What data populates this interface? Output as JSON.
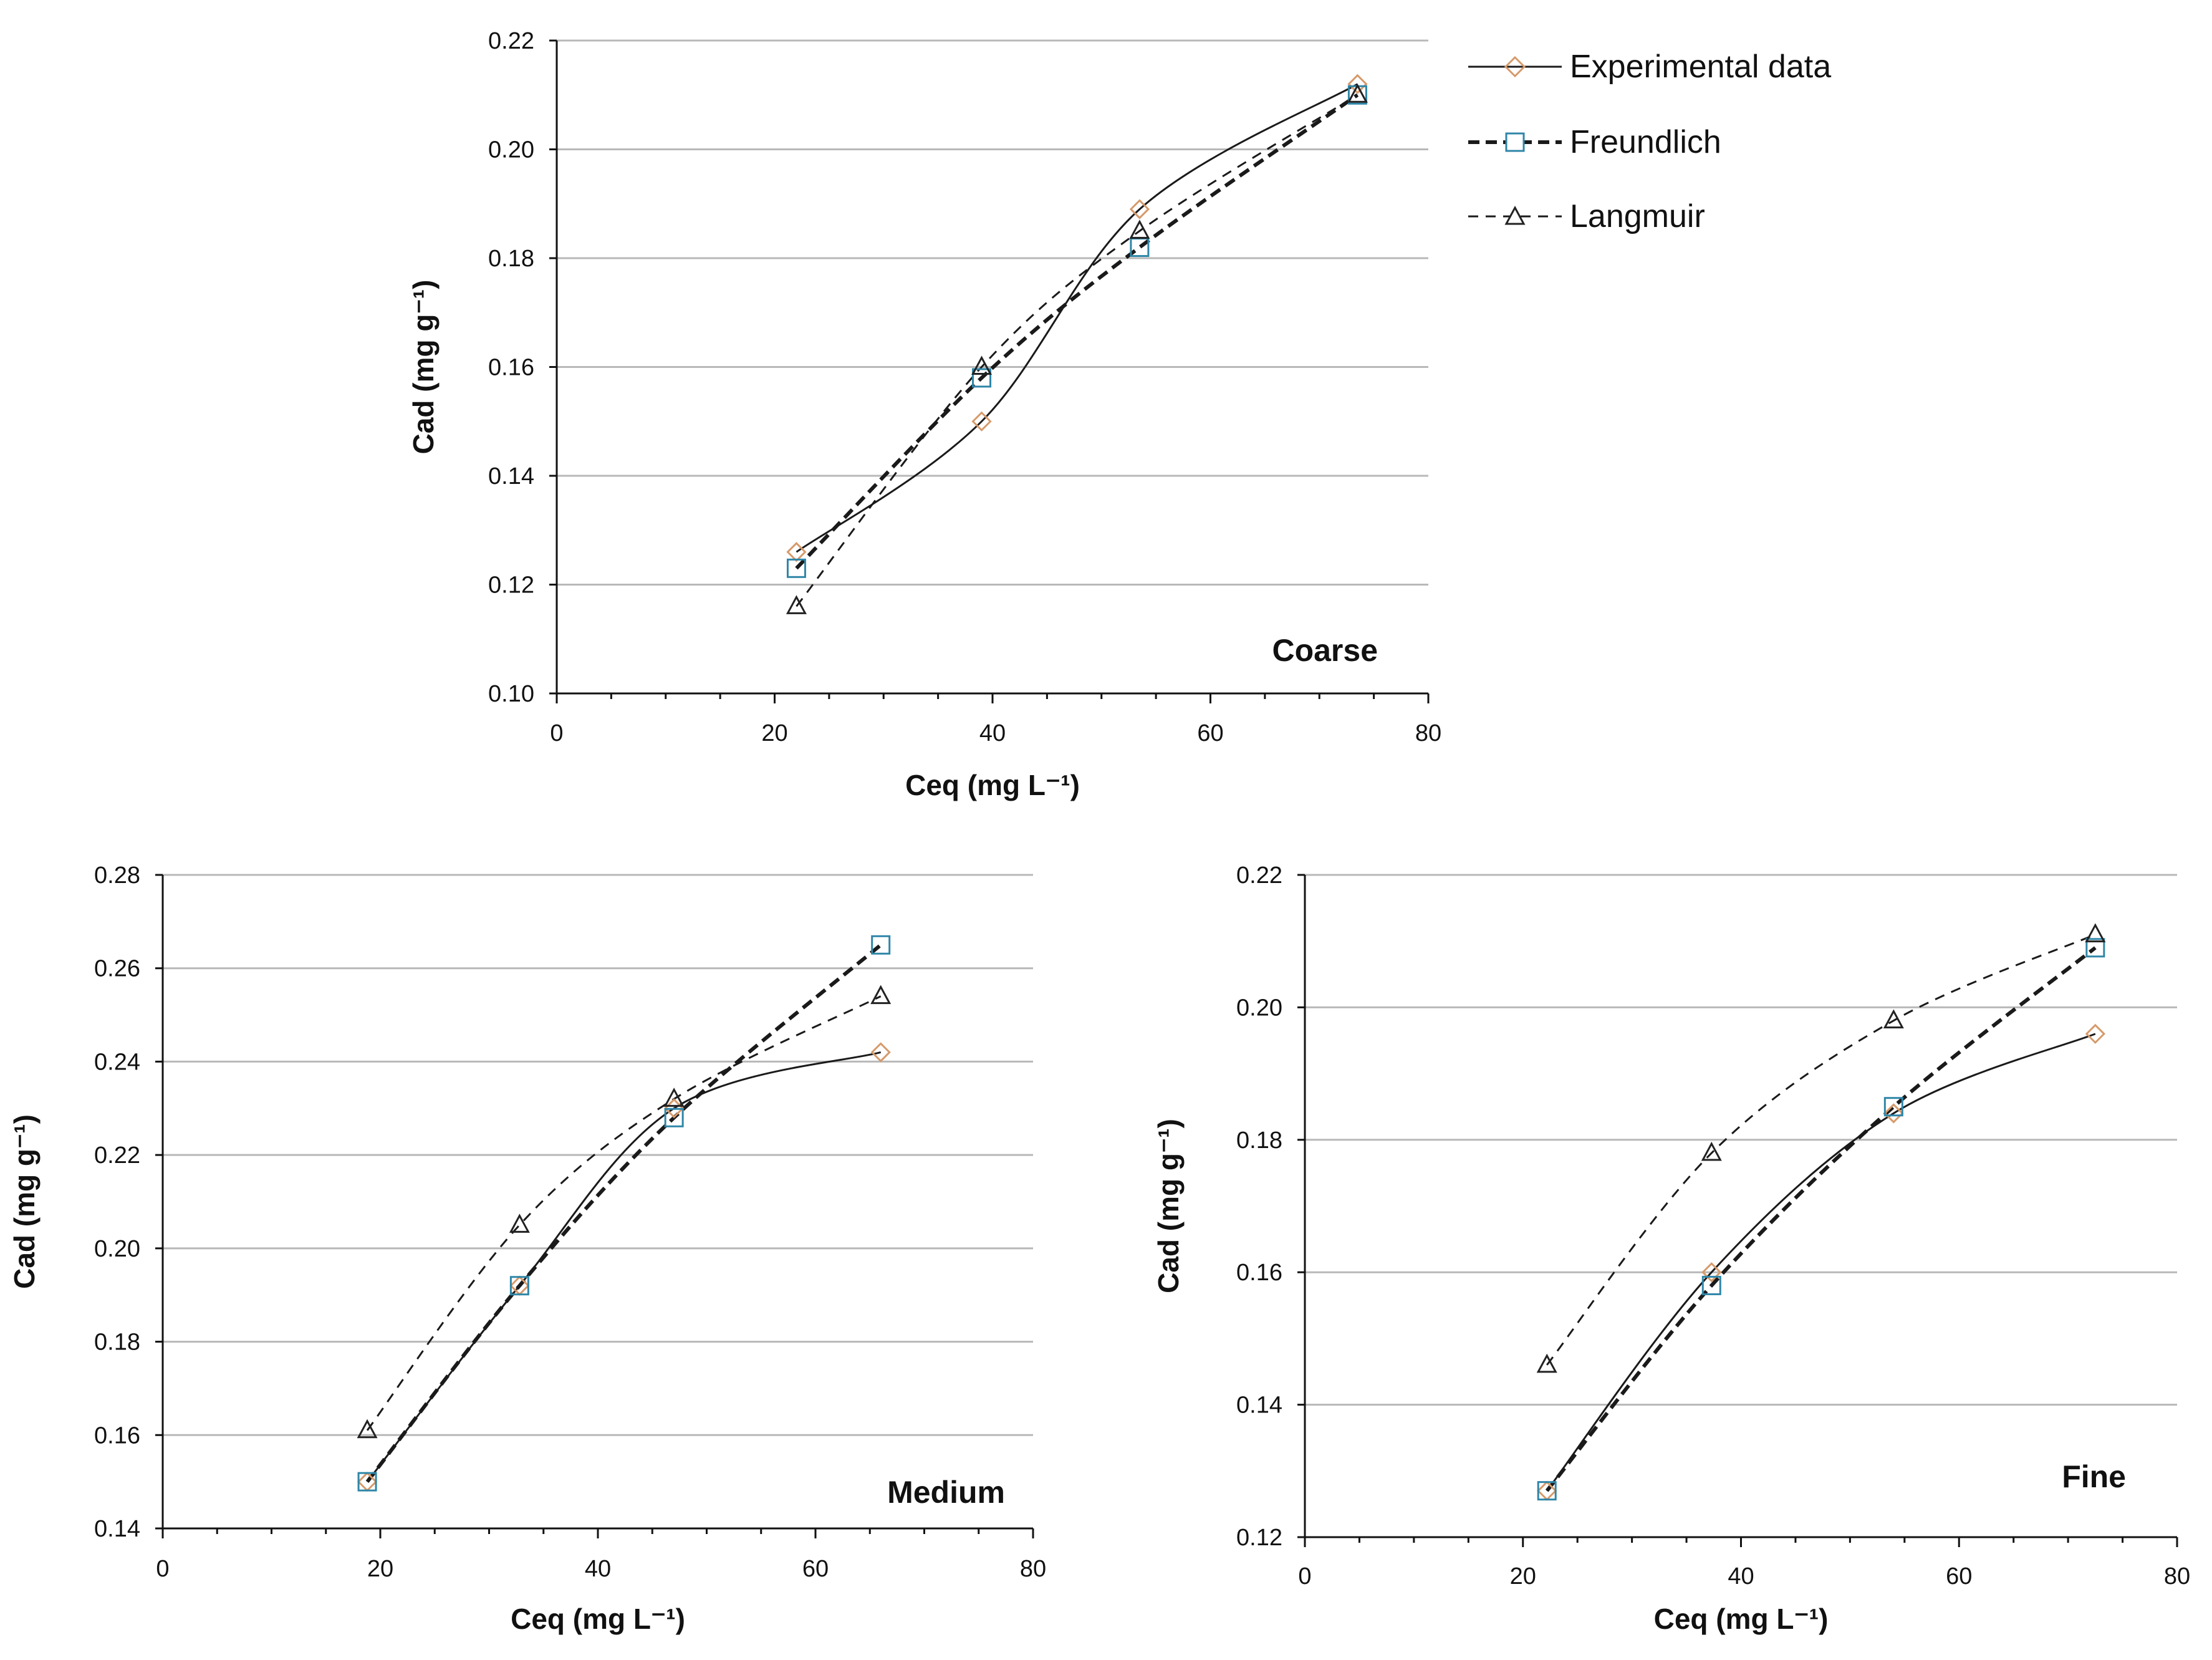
{
  "legend": {
    "items": [
      {
        "key": "exp",
        "label": "Experimental data"
      },
      {
        "key": "freundlich",
        "label": "Freundlich"
      },
      {
        "key": "langmuir",
        "label": "Langmuir"
      }
    ]
  },
  "colors": {
    "experimental_marker": "#d69a6a",
    "freundlich_marker": "#2f86a8",
    "langmuir_marker": "#222222",
    "line": "#1a1a1a",
    "grid": "#b8b8b8"
  },
  "chart_data": [
    {
      "id": "coarse",
      "type": "line",
      "label": "Coarse",
      "xlabel": "Ceq (mg L⁻¹)",
      "ylabel": "Cad (mg g⁻¹)",
      "xlim": [
        0,
        80
      ],
      "ylim": [
        0.1,
        0.22
      ],
      "xticks": [
        0,
        20,
        40,
        60,
        80
      ],
      "xtick_labels": [
        "0",
        "20",
        "40",
        "60",
        "80"
      ],
      "yticks": [
        0.1,
        0.12,
        0.14,
        0.16,
        0.18,
        0.2,
        0.22
      ],
      "ytick_labels": [
        "0.10",
        "0.12",
        "0.14",
        "0.16",
        "0.18",
        "0.20",
        "0.22"
      ],
      "grid": true,
      "series": [
        {
          "name": "Experimental data",
          "key": "exp",
          "x": [
            22,
            39,
            53.5,
            73.5
          ],
          "y": [
            0.126,
            0.15,
            0.189,
            0.212
          ]
        },
        {
          "name": "Freundlich",
          "key": "freundlich",
          "x": [
            22,
            39,
            53.5,
            73.5
          ],
          "y": [
            0.123,
            0.158,
            0.182,
            0.21
          ]
        },
        {
          "name": "Langmuir",
          "key": "langmuir",
          "x": [
            22,
            39,
            53.5,
            73.5
          ],
          "y": [
            0.116,
            0.16,
            0.185,
            0.21
          ]
        }
      ]
    },
    {
      "id": "medium",
      "type": "line",
      "label": "Medium",
      "xlabel": "Ceq (mg L⁻¹)",
      "ylabel": "Cad (mg g⁻¹)",
      "xlim": [
        0,
        80
      ],
      "ylim": [
        0.14,
        0.28
      ],
      "xticks": [
        0,
        20,
        40,
        60,
        80
      ],
      "xtick_labels": [
        "0",
        "20",
        "40",
        "60",
        "80"
      ],
      "yticks": [
        0.14,
        0.16,
        0.18,
        0.2,
        0.22,
        0.24,
        0.26,
        0.28
      ],
      "ytick_labels": [
        "0.14",
        "0.16",
        "0.18",
        "0.20",
        "0.22",
        "0.24",
        "0.26",
        "0.28"
      ],
      "grid": true,
      "series": [
        {
          "name": "Experimental data",
          "key": "exp",
          "x": [
            18.8,
            32.8,
            47,
            66
          ],
          "y": [
            0.15,
            0.192,
            0.23,
            0.242
          ]
        },
        {
          "name": "Freundlich",
          "key": "freundlich",
          "x": [
            18.8,
            32.8,
            47,
            66
          ],
          "y": [
            0.15,
            0.192,
            0.228,
            0.265
          ]
        },
        {
          "name": "Langmuir",
          "key": "langmuir",
          "x": [
            18.8,
            32.8,
            47,
            66
          ],
          "y": [
            0.161,
            0.205,
            0.232,
            0.254
          ]
        }
      ]
    },
    {
      "id": "fine",
      "type": "line",
      "label": "Fine",
      "xlabel": "Ceq (mg L⁻¹)",
      "ylabel": "Cad (mg g⁻¹)",
      "xlim": [
        0,
        80
      ],
      "ylim": [
        0.12,
        0.22
      ],
      "xticks": [
        0,
        20,
        40,
        60,
        80
      ],
      "xtick_labels": [
        "0",
        "20",
        "40",
        "60",
        "80"
      ],
      "yticks": [
        0.12,
        0.14,
        0.16,
        0.18,
        0.2,
        0.22
      ],
      "ytick_labels": [
        "0.12",
        "0.14",
        "0.16",
        "0.18",
        "0.20",
        "0.22"
      ],
      "grid": true,
      "series": [
        {
          "name": "Experimental data",
          "key": "exp",
          "x": [
            22.2,
            37.3,
            54,
            72.5
          ],
          "y": [
            0.127,
            0.16,
            0.184,
            0.196
          ]
        },
        {
          "name": "Freundlich",
          "key": "freundlich",
          "x": [
            22.2,
            37.3,
            54,
            72.5
          ],
          "y": [
            0.127,
            0.158,
            0.185,
            0.209
          ]
        },
        {
          "name": "Langmuir",
          "key": "langmuir",
          "x": [
            22.2,
            37.3,
            54,
            72.5
          ],
          "y": [
            0.146,
            0.178,
            0.198,
            0.211
          ]
        }
      ]
    }
  ]
}
